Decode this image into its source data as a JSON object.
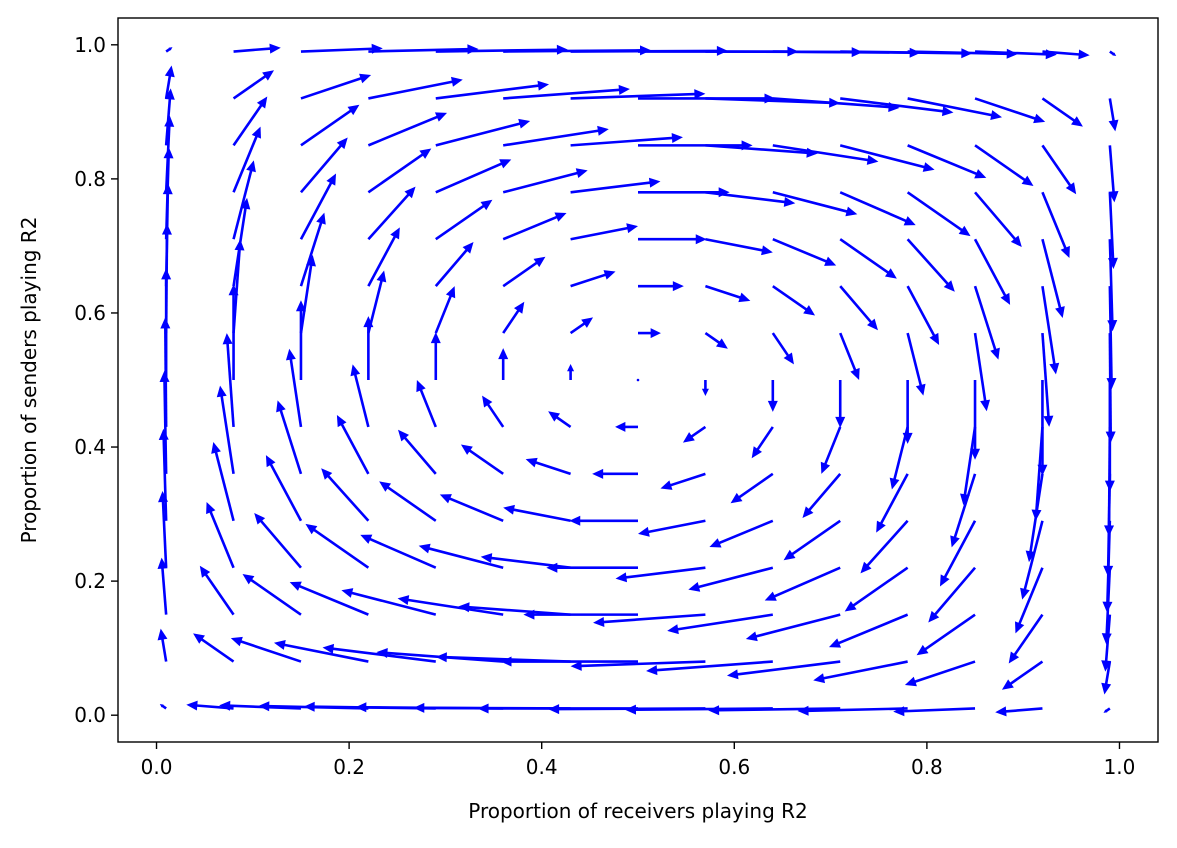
{
  "chart_data": {
    "type": "quiver",
    "title": "",
    "xlabel": "Proportion of receivers playing R2",
    "ylabel": "Proportion of senders playing R2",
    "xlim": [
      -0.04,
      1.04
    ],
    "ylim": [
      -0.04,
      1.04
    ],
    "xticks": [
      {
        "value": 0.0,
        "label": "0.0"
      },
      {
        "value": 0.2,
        "label": "0.2"
      },
      {
        "value": 0.4,
        "label": "0.4"
      },
      {
        "value": 0.6,
        "label": "0.6"
      },
      {
        "value": 0.8,
        "label": "0.8"
      },
      {
        "value": 1.0,
        "label": "1.0"
      }
    ],
    "yticks": [
      {
        "value": 0.0,
        "label": "0.0"
      },
      {
        "value": 0.2,
        "label": "0.2"
      },
      {
        "value": 0.4,
        "label": "0.4"
      },
      {
        "value": 0.6,
        "label": "0.6"
      },
      {
        "value": 0.8,
        "label": "0.8"
      },
      {
        "value": 1.0,
        "label": "1.0"
      }
    ],
    "grid": false,
    "arrow_color": "#0000ff",
    "vector_field": {
      "x": [
        0.01,
        0.08,
        0.15,
        0.22,
        0.29,
        0.36,
        0.43,
        0.5,
        0.57,
        0.64,
        0.71,
        0.78,
        0.85,
        0.92,
        0.99
      ],
      "y": [
        0.01,
        0.08,
        0.15,
        0.22,
        0.29,
        0.36,
        0.43,
        0.5,
        0.57,
        0.64,
        0.71,
        0.78,
        0.85,
        0.92,
        0.99
      ],
      "u_formula": "x*(1-x)*(2*y-1)",
      "v_formula": "y*(1-y)*(1-2*x)",
      "scale": 0.68
    }
  }
}
